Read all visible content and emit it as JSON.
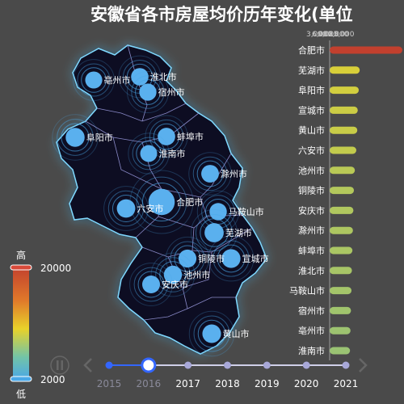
{
  "title": "安徽省各市房屋均价历年变化(单位",
  "chart_data": {
    "type": "bar",
    "title": "安徽省各市房屋均价历年变化(单位",
    "current_year": "2016",
    "years": [
      "2015",
      "2016",
      "2017",
      "2018",
      "2019",
      "2020",
      "2021"
    ],
    "categories": [
      "合肥市",
      "芜湖市",
      "阜阳市",
      "宣城市",
      "黄山市",
      "六安市",
      "池州市",
      "铜陵市",
      "安庆市",
      "滁州市",
      "蚌埠市",
      "淮北市",
      "马鞍山市",
      "宿州市",
      "亳州市",
      "淮南市"
    ],
    "values": [
      15000,
      6200,
      6000,
      5800,
      5700,
      5500,
      5200,
      5000,
      4900,
      4800,
      4700,
      4600,
      4500,
      4400,
      4300,
      4200
    ],
    "xlim": [
      0,
      15000
    ],
    "x_ticks": [
      "3,000",
      "6,000",
      "9,000",
      "12,000",
      "15,000"
    ],
    "visual_map": {
      "max_label": "高",
      "min_label": "低",
      "max_value": "20000",
      "min_value": "2000"
    },
    "map_cities": [
      {
        "name": "亳州市",
        "value": 4300
      },
      {
        "name": "淮北市",
        "value": 4600
      },
      {
        "name": "宿州市",
        "value": 4400
      },
      {
        "name": "阜阳市",
        "value": 6000
      },
      {
        "name": "蚌埠市",
        "value": 4700
      },
      {
        "name": "淮南市",
        "value": 4200
      },
      {
        "name": "滁州市",
        "value": 4800
      },
      {
        "name": "六安市",
        "value": 5500
      },
      {
        "name": "合肥市",
        "value": 15000
      },
      {
        "name": "马鞍山市",
        "value": 4500
      },
      {
        "name": "芜湖市",
        "value": 6200
      },
      {
        "name": "铜陵市",
        "value": 5000
      },
      {
        "name": "宣城市",
        "value": 5800
      },
      {
        "name": "池州市",
        "value": 5200
      },
      {
        "name": "安庆市",
        "value": 4900
      },
      {
        "name": "黄山市",
        "value": 5700
      }
    ]
  }
}
